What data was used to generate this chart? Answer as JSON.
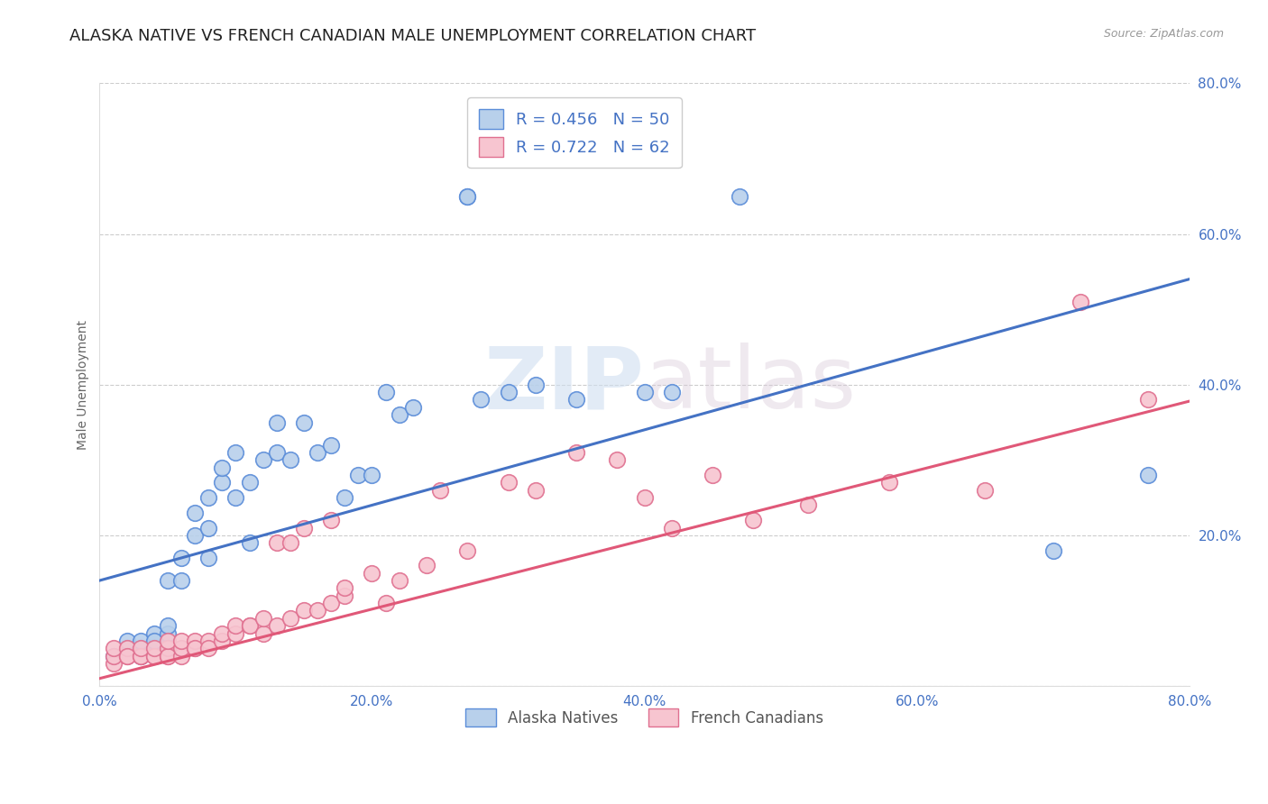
{
  "title": "ALASKA NATIVE VS FRENCH CANADIAN MALE UNEMPLOYMENT CORRELATION CHART",
  "source": "Source: ZipAtlas.com",
  "ylabel": "Male Unemployment",
  "xlim": [
    0.0,
    0.8
  ],
  "ylim": [
    0.0,
    0.8
  ],
  "xticks": [
    0.0,
    0.2,
    0.4,
    0.6,
    0.8
  ],
  "yticks": [
    0.0,
    0.2,
    0.4,
    0.6,
    0.8
  ],
  "alaska_R": 0.456,
  "alaska_N": 50,
  "french_R": 0.722,
  "french_N": 62,
  "alaska_color": "#b8d0eb",
  "alaska_edge_color": "#5b8dd9",
  "alaska_line_color": "#4472c4",
  "french_color": "#f7c5d0",
  "french_edge_color": "#e07090",
  "french_line_color": "#e05878",
  "alaska_scatter_x": [
    0.01,
    0.02,
    0.02,
    0.03,
    0.03,
    0.03,
    0.04,
    0.04,
    0.04,
    0.05,
    0.05,
    0.05,
    0.05,
    0.06,
    0.06,
    0.07,
    0.07,
    0.08,
    0.08,
    0.08,
    0.09,
    0.09,
    0.1,
    0.1,
    0.11,
    0.11,
    0.12,
    0.13,
    0.13,
    0.14,
    0.15,
    0.16,
    0.17,
    0.18,
    0.19,
    0.2,
    0.21,
    0.22,
    0.23,
    0.27,
    0.27,
    0.28,
    0.3,
    0.32,
    0.35,
    0.4,
    0.42,
    0.47,
    0.7,
    0.77
  ],
  "alaska_scatter_y": [
    0.04,
    0.05,
    0.06,
    0.05,
    0.04,
    0.06,
    0.05,
    0.07,
    0.06,
    0.07,
    0.05,
    0.08,
    0.14,
    0.14,
    0.17,
    0.2,
    0.23,
    0.21,
    0.17,
    0.25,
    0.27,
    0.29,
    0.25,
    0.31,
    0.27,
    0.19,
    0.3,
    0.31,
    0.35,
    0.3,
    0.35,
    0.31,
    0.32,
    0.25,
    0.28,
    0.28,
    0.39,
    0.36,
    0.37,
    0.65,
    0.65,
    0.38,
    0.39,
    0.4,
    0.38,
    0.39,
    0.39,
    0.65,
    0.18,
    0.28
  ],
  "french_scatter_x": [
    0.01,
    0.01,
    0.01,
    0.02,
    0.02,
    0.02,
    0.03,
    0.03,
    0.03,
    0.04,
    0.04,
    0.04,
    0.05,
    0.05,
    0.05,
    0.05,
    0.06,
    0.06,
    0.06,
    0.07,
    0.07,
    0.07,
    0.08,
    0.08,
    0.09,
    0.09,
    0.1,
    0.1,
    0.11,
    0.11,
    0.12,
    0.12,
    0.13,
    0.13,
    0.14,
    0.14,
    0.15,
    0.15,
    0.16,
    0.17,
    0.17,
    0.18,
    0.18,
    0.2,
    0.21,
    0.22,
    0.24,
    0.25,
    0.27,
    0.3,
    0.32,
    0.35,
    0.38,
    0.4,
    0.42,
    0.45,
    0.48,
    0.52,
    0.58,
    0.65,
    0.72,
    0.77
  ],
  "french_scatter_y": [
    0.03,
    0.04,
    0.05,
    0.04,
    0.05,
    0.04,
    0.04,
    0.04,
    0.05,
    0.04,
    0.04,
    0.05,
    0.04,
    0.05,
    0.04,
    0.06,
    0.04,
    0.05,
    0.06,
    0.05,
    0.06,
    0.05,
    0.06,
    0.05,
    0.06,
    0.07,
    0.07,
    0.08,
    0.08,
    0.08,
    0.07,
    0.09,
    0.08,
    0.19,
    0.09,
    0.19,
    0.1,
    0.21,
    0.1,
    0.11,
    0.22,
    0.12,
    0.13,
    0.15,
    0.11,
    0.14,
    0.16,
    0.26,
    0.18,
    0.27,
    0.26,
    0.31,
    0.3,
    0.25,
    0.21,
    0.28,
    0.22,
    0.24,
    0.27,
    0.26,
    0.51,
    0.38
  ],
  "alaska_reg_intercept": 0.14,
  "alaska_reg_slope": 0.5,
  "french_reg_intercept": 0.01,
  "french_reg_slope": 0.46,
  "watermark_text": "ZIPatlas",
  "watermark_zip_color": "#d0dff0",
  "watermark_atlas_color": "#d8c8d8",
  "background_color": "#ffffff",
  "grid_color": "#cccccc",
  "tick_color": "#4472c4",
  "title_fontsize": 13,
  "axis_label_fontsize": 10,
  "tick_fontsize": 11
}
